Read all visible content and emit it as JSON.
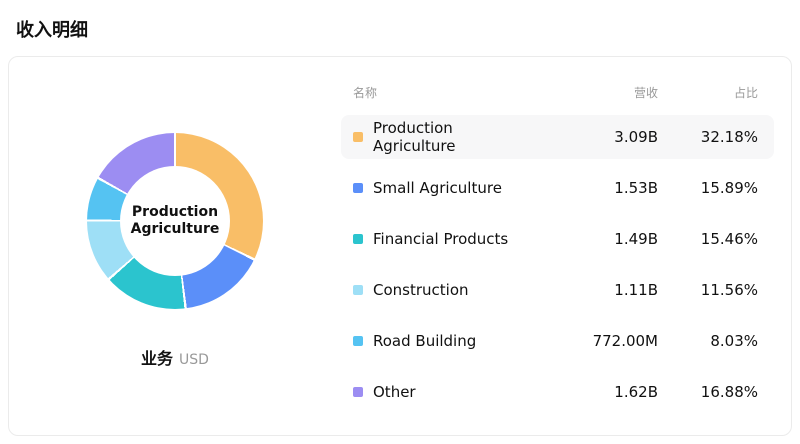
{
  "page": {
    "title": "收入明细"
  },
  "chart": {
    "center_label": "Production Agriculture",
    "footer_label": "业务",
    "footer_unit": "USD"
  },
  "table": {
    "headers": {
      "name": "名称",
      "revenue": "营收",
      "share": "占比"
    },
    "rows": [
      {
        "name": "Production Agriculture",
        "revenue": "3.09B",
        "share": "32.18%",
        "color": "#F9BE67"
      },
      {
        "name": "Small Agriculture",
        "revenue": "1.53B",
        "share": "15.89%",
        "color": "#5B8FF9"
      },
      {
        "name": "Financial Products",
        "revenue": "1.49B",
        "share": "15.46%",
        "color": "#2BC4CE"
      },
      {
        "name": "Construction",
        "revenue": "1.11B",
        "share": "11.56%",
        "color": "#9EDFF6"
      },
      {
        "name": "Road Building",
        "revenue": "772.00M",
        "share": "8.03%",
        "color": "#55C3F2"
      },
      {
        "name": "Other",
        "revenue": "1.62B",
        "share": "16.88%",
        "color": "#9C8DF2"
      }
    ]
  },
  "chart_data": {
    "type": "pie",
    "donut": true,
    "title": "收入明细",
    "unit": "USD",
    "center_label": "Production Agriculture",
    "legend_position": "right-table",
    "categories": [
      "Production Agriculture",
      "Small Agriculture",
      "Financial Products",
      "Construction",
      "Road Building",
      "Other"
    ],
    "values": [
      32.18,
      15.89,
      15.46,
      11.56,
      8.03,
      16.88
    ],
    "revenues": [
      "3.09B",
      "1.53B",
      "1.49B",
      "1.11B",
      "772.00M",
      "1.62B"
    ],
    "colors": [
      "#F9BE67",
      "#5B8FF9",
      "#2BC4CE",
      "#9EDFF6",
      "#55C3F2",
      "#9C8DF2"
    ],
    "start_angle_deg": 0,
    "direction": "clockwise"
  }
}
